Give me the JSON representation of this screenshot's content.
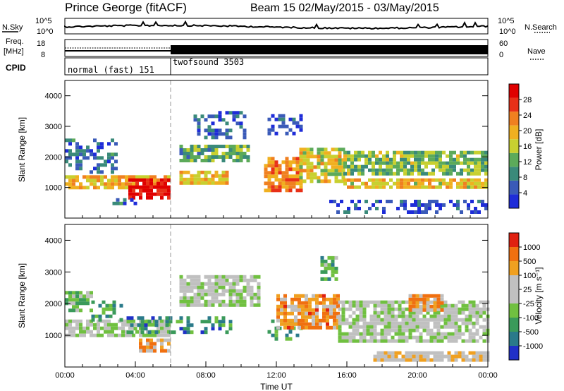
{
  "header": {
    "title": "Prince George (fitACF)",
    "beam": "Beam 15 02/May/2015 - 03/May/2015"
  },
  "top_panels": {
    "nsky_label": "N.Sky",
    "nsky_ticks": [
      "10^5",
      "10^0"
    ],
    "nsearch_label": "N.Search",
    "nsearch_ticks": [
      "10^5",
      "10^0"
    ],
    "freq_label": "Freq.",
    "freq_unit": "[MHz]",
    "freq_ticks": [
      "18",
      "8"
    ],
    "nave_label": "Nave",
    "nave_ticks": [
      "60",
      "0"
    ],
    "cpid_label": "CPID",
    "cpid_modes": [
      {
        "name": "normal (fast) 151",
        "start_hour": 0,
        "end_hour": 6
      },
      {
        "name": "twofsound 3503",
        "start_hour": 6,
        "end_hour": 24
      }
    ]
  },
  "chart_data": [
    {
      "type": "heatmap",
      "name": "power",
      "ylabel": "Slant Range [km]",
      "yticks": [
        1000,
        2000,
        3000,
        4000
      ],
      "ylim": [
        0,
        4500
      ],
      "xlim": [
        0,
        24
      ],
      "colorbar_label": "Power [dB]",
      "colorbar_ticks": [
        "4",
        "8",
        "12",
        "16",
        "20",
        "24",
        "28"
      ],
      "colormap": [
        "#1e2cd8",
        "#3a5ab8",
        "#3a8a7a",
        "#5caa5a",
        "#c8d030",
        "#f0b020",
        "#f08020",
        "#e83018",
        "#e00000"
      ],
      "bands": [
        {
          "x0": 0.0,
          "x1": 6.0,
          "r0": 1000,
          "r1": 1400,
          "level": 0.62
        },
        {
          "x0": 3.6,
          "x1": 6.0,
          "r0": 650,
          "r1": 1300,
          "level": 0.92
        },
        {
          "x0": 6.5,
          "x1": 9.2,
          "r0": 1100,
          "r1": 1550,
          "level": 0.6
        },
        {
          "x0": 11.3,
          "x1": 13.4,
          "r0": 900,
          "r1": 2000,
          "level": 0.72
        },
        {
          "x0": 13.3,
          "x1": 15.8,
          "r0": 1200,
          "r1": 2300,
          "level": 0.55
        },
        {
          "x0": 15.8,
          "x1": 24.0,
          "r0": 1000,
          "r1": 1300,
          "level": 0.58
        },
        {
          "x0": 15.8,
          "x1": 24.0,
          "r0": 1400,
          "r1": 2200,
          "level": 0.42
        },
        {
          "x0": 0.0,
          "x1": 3.0,
          "r0": 1500,
          "r1": 2600,
          "level": 0.2
        },
        {
          "x0": 6.5,
          "x1": 10.5,
          "r0": 1900,
          "r1": 2400,
          "level": 0.35
        },
        {
          "x0": 7.3,
          "x1": 10.3,
          "r0": 2600,
          "r1": 3500,
          "level": 0.15
        },
        {
          "x0": 11.5,
          "x1": 13.5,
          "r0": 2800,
          "r1": 3400,
          "level": 0.12
        },
        {
          "x0": 2.5,
          "x1": 4.5,
          "r0": 450,
          "r1": 650,
          "level": 0.2
        },
        {
          "x0": 15.0,
          "x1": 24.0,
          "r0": 200,
          "r1": 600,
          "level": 0.12
        }
      ]
    },
    {
      "type": "heatmap",
      "name": "velocity",
      "xlabel": "Time UT",
      "ylabel": "Slant Range [km]",
      "yticks": [
        1000,
        2000,
        3000,
        4000
      ],
      "ylim": [
        0,
        4500
      ],
      "xlim": [
        0,
        24
      ],
      "xtick_labels": [
        "00:00",
        "04:00",
        "08:00",
        "12:00",
        "16:00",
        "20:00",
        "00:00"
      ],
      "colorbar_label": "Velocity [m s⁻¹]",
      "colorbar_ticks": [
        "1000",
        "500",
        "100",
        "25",
        "-25",
        "-100",
        "-500",
        "-1000"
      ],
      "colormap": [
        "#2030c8",
        "#2a7a8a",
        "#3a9a5a",
        "#70c040",
        "#c0c0c0",
        "#c0c0c0",
        "#f0a020",
        "#f07010",
        "#e02010"
      ],
      "bands": [
        {
          "x0": 0.0,
          "x1": 6.0,
          "r0": 1000,
          "r1": 1500,
          "level": 0.5
        },
        {
          "x0": 1.5,
          "x1": 3.5,
          "r0": 1500,
          "r1": 2100,
          "level": 0.3
        },
        {
          "x0": 3.5,
          "x1": 9.5,
          "r0": 1050,
          "r1": 1600,
          "level": 0.22
        },
        {
          "x0": 4.2,
          "x1": 6.0,
          "r0": 550,
          "r1": 900,
          "level": 0.72
        },
        {
          "x0": 11.5,
          "x1": 13.5,
          "r0": 900,
          "r1": 1500,
          "level": 0.3
        },
        {
          "x0": 12.0,
          "x1": 15.5,
          "r0": 1200,
          "r1": 2300,
          "level": 0.75
        },
        {
          "x0": 15.5,
          "x1": 24.0,
          "r0": 800,
          "r1": 2100,
          "level": 0.5
        },
        {
          "x0": 6.5,
          "x1": 11.0,
          "r0": 1900,
          "r1": 2900,
          "level": 0.5
        },
        {
          "x0": 14.5,
          "x1": 15.5,
          "r0": 2800,
          "r1": 3500,
          "level": 0.3
        },
        {
          "x0": 19.5,
          "x1": 21.5,
          "r0": 1800,
          "r1": 2300,
          "level": 0.73
        },
        {
          "x0": 17.5,
          "x1": 24.0,
          "r0": 200,
          "r1": 500,
          "level": 0.6
        },
        {
          "x0": 0.0,
          "x1": 1.5,
          "r0": 1800,
          "r1": 2400,
          "level": 0.4
        }
      ]
    }
  ]
}
